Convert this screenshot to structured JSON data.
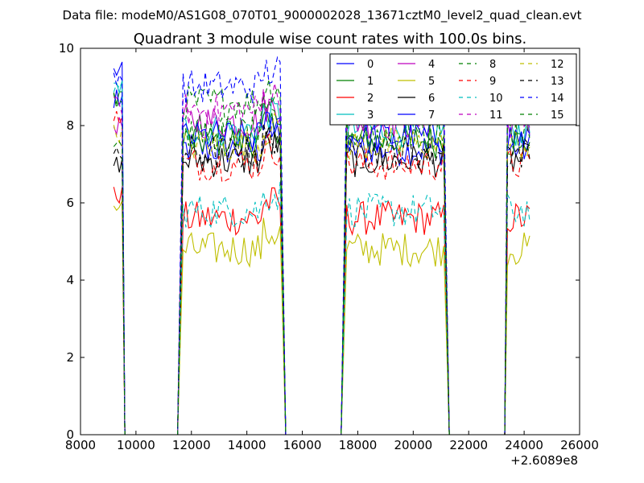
{
  "header": {
    "data_file": "Data file: modeM0/AS1G08_070T01_9000002028_13671cztM0_level2_quad_clean.evt"
  },
  "chart_data": {
    "type": "line",
    "title": "Quadrant 3 module wise count rates with 100.0s bins.",
    "xlabel": "",
    "ylabel": "",
    "xlim": [
      8000,
      26000
    ],
    "ylim": [
      0,
      10
    ],
    "x_ticks": [
      8000,
      10000,
      12000,
      14000,
      16000,
      18000,
      20000,
      22000,
      24000,
      26000
    ],
    "y_ticks": [
      0,
      2,
      4,
      6,
      8,
      10
    ],
    "x_offset_label": "+2.6089e8",
    "legend_position": "top-right",
    "legend_columns": 4,
    "segments": [
      {
        "start": 9200,
        "end": 9500
      },
      {
        "start": 11700,
        "end": 15200
      },
      {
        "start": 17600,
        "end": 21100
      },
      {
        "start": 23400,
        "end": 24200
      }
    ],
    "gaps": [
      [
        9600,
        11500
      ],
      [
        15400,
        17400
      ],
      [
        21300,
        23300
      ]
    ],
    "series": [
      {
        "name": "0",
        "color": "#0000ff",
        "dashed": false,
        "level": 7.4,
        "spike": 9.4
      },
      {
        "name": "1",
        "color": "#008000",
        "dashed": false,
        "level": 7.6,
        "spike": 8.8
      },
      {
        "name": "2",
        "color": "#ff0000",
        "dashed": false,
        "level": 5.6,
        "spike": 6.2
      },
      {
        "name": "3",
        "color": "#00bfbf",
        "dashed": false,
        "level": 7.9,
        "spike": 9.0
      },
      {
        "name": "4",
        "color": "#bf00bf",
        "dashed": false,
        "level": 8.1,
        "spike": 8.0
      },
      {
        "name": "5",
        "color": "#bfbf00",
        "dashed": false,
        "level": 4.8,
        "spike": 5.9
      },
      {
        "name": "6",
        "color": "#000000",
        "dashed": false,
        "level": 7.1,
        "spike": 7.0
      },
      {
        "name": "7",
        "color": "#0000ff",
        "dashed": false,
        "level": 7.7,
        "spike": 8.7
      },
      {
        "name": "8",
        "color": "#008000",
        "dashed": true,
        "level": 8.6,
        "spike": 8.6
      },
      {
        "name": "9",
        "color": "#ff0000",
        "dashed": true,
        "level": 7.0,
        "spike": 8.2
      },
      {
        "name": "10",
        "color": "#00bfbf",
        "dashed": true,
        "level": 5.8,
        "spike": 9.0
      },
      {
        "name": "11",
        "color": "#bf00bf",
        "dashed": true,
        "level": 8.4,
        "spike": 8.5
      },
      {
        "name": "12",
        "color": "#bfbf00",
        "dashed": true,
        "level": 7.5,
        "spike": 7.8
      },
      {
        "name": "13",
        "color": "#000000",
        "dashed": true,
        "level": 7.3,
        "spike": 7.2
      },
      {
        "name": "14",
        "color": "#0000ff",
        "dashed": true,
        "level": 9.0,
        "spike": 9.3
      },
      {
        "name": "15",
        "color": "#008000",
        "dashed": true,
        "level": 7.8,
        "spike": 7.6
      }
    ]
  }
}
